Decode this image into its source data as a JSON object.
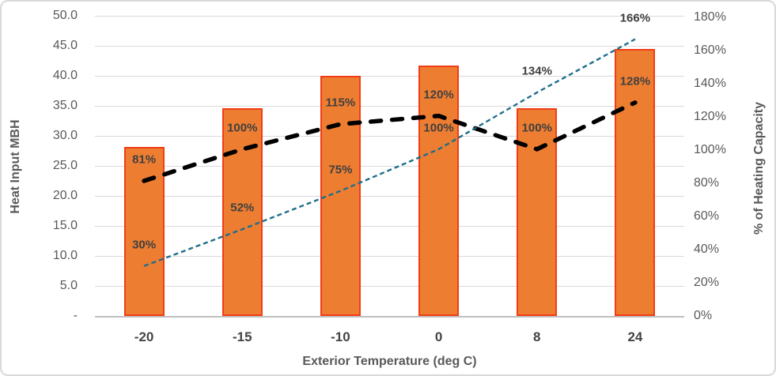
{
  "chart_data": {
    "type": "combo-bar-line",
    "title": "",
    "xlabel": "Exterior Temperature (deg C)",
    "ylabel_left": "Heat Input MBH",
    "ylabel_right": "% of Heating Capacity",
    "categories": [
      "-20",
      "-15",
      "-10",
      "0",
      "8",
      "24"
    ],
    "bar_series": {
      "name": "Heat Input MBH",
      "axis": "left",
      "values": [
        28.2,
        34.6,
        40.0,
        41.7,
        34.6,
        44.5
      ],
      "fill_color": "#ED7D31",
      "border_color": "#F23C14"
    },
    "line_series": [
      {
        "name": "capacity-percent-black-dashed",
        "axis": "right",
        "values": [
          81,
          100,
          115,
          120,
          100,
          128
        ],
        "labels": [
          "81%",
          "100%",
          "115%",
          "120%",
          "100%",
          "128%"
        ],
        "color": "#000000",
        "style": "thick-dashed"
      },
      {
        "name": "capacity-percent-blue-dotted",
        "axis": "right",
        "values": [
          30,
          52,
          75,
          100,
          134,
          166
        ],
        "labels": [
          "30%",
          "52%",
          "75%",
          "100%",
          "134%",
          "166%"
        ],
        "color": "#1F6E8C",
        "style": "thin-dashed"
      }
    ],
    "left_axis": {
      "min": 0,
      "max": 50,
      "ticks": [
        "50.0",
        "45.0",
        "40.0",
        "35.0",
        "30.0",
        "25.0",
        "20.0",
        "15.0",
        "10.0",
        "5.0",
        "-"
      ]
    },
    "right_axis": {
      "min": 0,
      "max": 180,
      "ticks": [
        "180%",
        "160%",
        "140%",
        "120%",
        "100%",
        "80%",
        "60%",
        "40%",
        "20%",
        "0%"
      ]
    },
    "grid": true,
    "legend": "none",
    "label_color": "#404040",
    "tick_color": "#595959",
    "gridline_color": "#D9D9D9"
  }
}
